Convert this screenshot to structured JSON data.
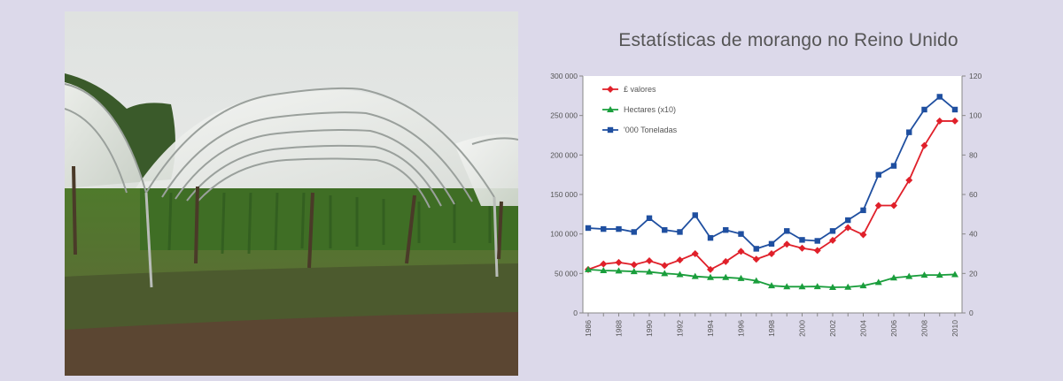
{
  "chart_data": {
    "type": "line",
    "title": "Estatísticas de morango no Reino Unido",
    "x": [
      1986,
      1987,
      1988,
      1989,
      1990,
      1991,
      1992,
      1993,
      1994,
      1995,
      1996,
      1997,
      1998,
      1999,
      2000,
      2001,
      2002,
      2003,
      2004,
      2005,
      2006,
      2007,
      2008,
      2009,
      2010
    ],
    "x_ticks": [
      "1986",
      "1988",
      "1990",
      "1992",
      "1994",
      "1996",
      "1998",
      "2000",
      "2002",
      "2004",
      "2006",
      "2008",
      "2010"
    ],
    "y_left": {
      "range": [
        0,
        300000
      ],
      "ticks": [
        "0",
        "50 000",
        "100 000",
        "150 000",
        "200 000",
        "250 000",
        "300 000"
      ]
    },
    "y_right": {
      "range": [
        0,
        120
      ],
      "ticks": [
        "0",
        "20",
        "40",
        "60",
        "80",
        "100",
        "120"
      ]
    },
    "legend_position": "top-left",
    "series": [
      {
        "name": "£ valores",
        "color": "#e0202a",
        "marker": "diamond",
        "axis": "left",
        "values": [
          55000,
          62000,
          64000,
          61000,
          66000,
          60000,
          67000,
          75000,
          55000,
          65000,
          78000,
          68000,
          75000,
          87000,
          82000,
          79000,
          92000,
          108000,
          99000,
          136000,
          136000,
          168000,
          212000,
          243000,
          243000
        ]
      },
      {
        "name": "Hectares (x10)",
        "color": "#1a9e3c",
        "marker": "triangle",
        "axis": "right",
        "values": [
          22,
          21.5,
          21.3,
          21,
          20.8,
          20,
          19.5,
          18.5,
          18,
          18,
          17.5,
          16.3,
          13.8,
          13.3,
          13.3,
          13.4,
          13,
          13.1,
          13.8,
          15.5,
          17.8,
          18.5,
          19.2,
          19.2,
          19.5
        ]
      },
      {
        "name": "'000 Toneladas",
        "color": "#1f4fa0",
        "marker": "square",
        "axis": "right",
        "values": [
          43,
          42.5,
          42.5,
          41,
          48,
          42,
          41,
          49.5,
          38,
          42,
          40,
          32.5,
          35,
          41.5,
          37,
          36.5,
          41.5,
          47,
          52,
          70,
          74.5,
          91.5,
          103,
          109.5,
          103
        ]
      }
    ]
  }
}
